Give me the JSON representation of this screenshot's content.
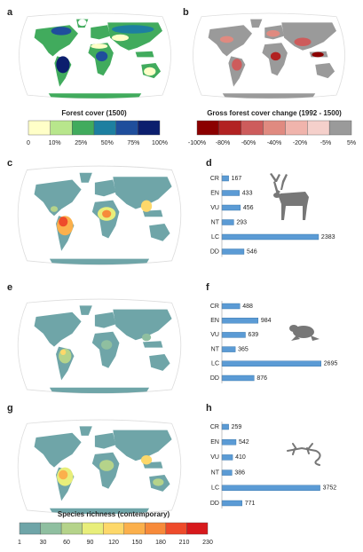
{
  "panels": [
    "a",
    "b",
    "c",
    "d",
    "e",
    "f",
    "g",
    "h"
  ],
  "legends": [
    {
      "title": "Forest cover (1500)",
      "colors": [
        "#ffffc8",
        "#b8e68c",
        "#41ab5d",
        "#1d7fa0",
        "#1f4e9c",
        "#0c1f6e"
      ],
      "labels": [
        "0",
        "10%",
        "25%",
        "50%",
        "75%",
        "100%"
      ]
    },
    {
      "title": "Gross forest cover change (1992 - 1500)",
      "colors": [
        "#8b0000",
        "#b22222",
        "#cd5c5c",
        "#e08a80",
        "#f0b4ac",
        "#f5d0cb",
        "#9a9a9a"
      ],
      "labels": [
        "-100%",
        "-80%",
        "-60%",
        "-40%",
        "-20%",
        "-5%",
        "5%"
      ]
    },
    {
      "title": "Species richness (contemporary)",
      "colors": [
        "#6fa5a8",
        "#8fbfa0",
        "#b5d38a",
        "#e8ee7a",
        "#fdd86a",
        "#fbb04c",
        "#f78a3a",
        "#ee4b2b",
        "#d7191c"
      ],
      "labels": [
        "1",
        "30",
        "60",
        "90",
        "120",
        "150",
        "180",
        "210",
        "230"
      ]
    }
  ],
  "chart_data": [
    {
      "type": "bar",
      "categories": [
        "CR",
        "EN",
        "VU",
        "NT",
        "LC",
        "DD"
      ],
      "values": [
        167,
        433,
        456,
        293,
        2383,
        546
      ],
      "xlim": [
        0,
        2450
      ],
      "color": "#5b9bd5"
    },
    {
      "type": "bar",
      "categories": [
        "CR",
        "EN",
        "VU",
        "NT",
        "LC",
        "DD"
      ],
      "values": [
        488,
        984,
        639,
        365,
        2695,
        876
      ],
      "xlim": [
        0,
        2700
      ],
      "color": "#5b9bd5"
    },
    {
      "type": "bar",
      "categories": [
        "CR",
        "EN",
        "VU",
        "NT",
        "LC",
        "DD"
      ],
      "values": [
        259,
        542,
        410,
        386,
        3752,
        771
      ],
      "xlim": [
        0,
        3800
      ],
      "color": "#5b9bd5"
    }
  ]
}
